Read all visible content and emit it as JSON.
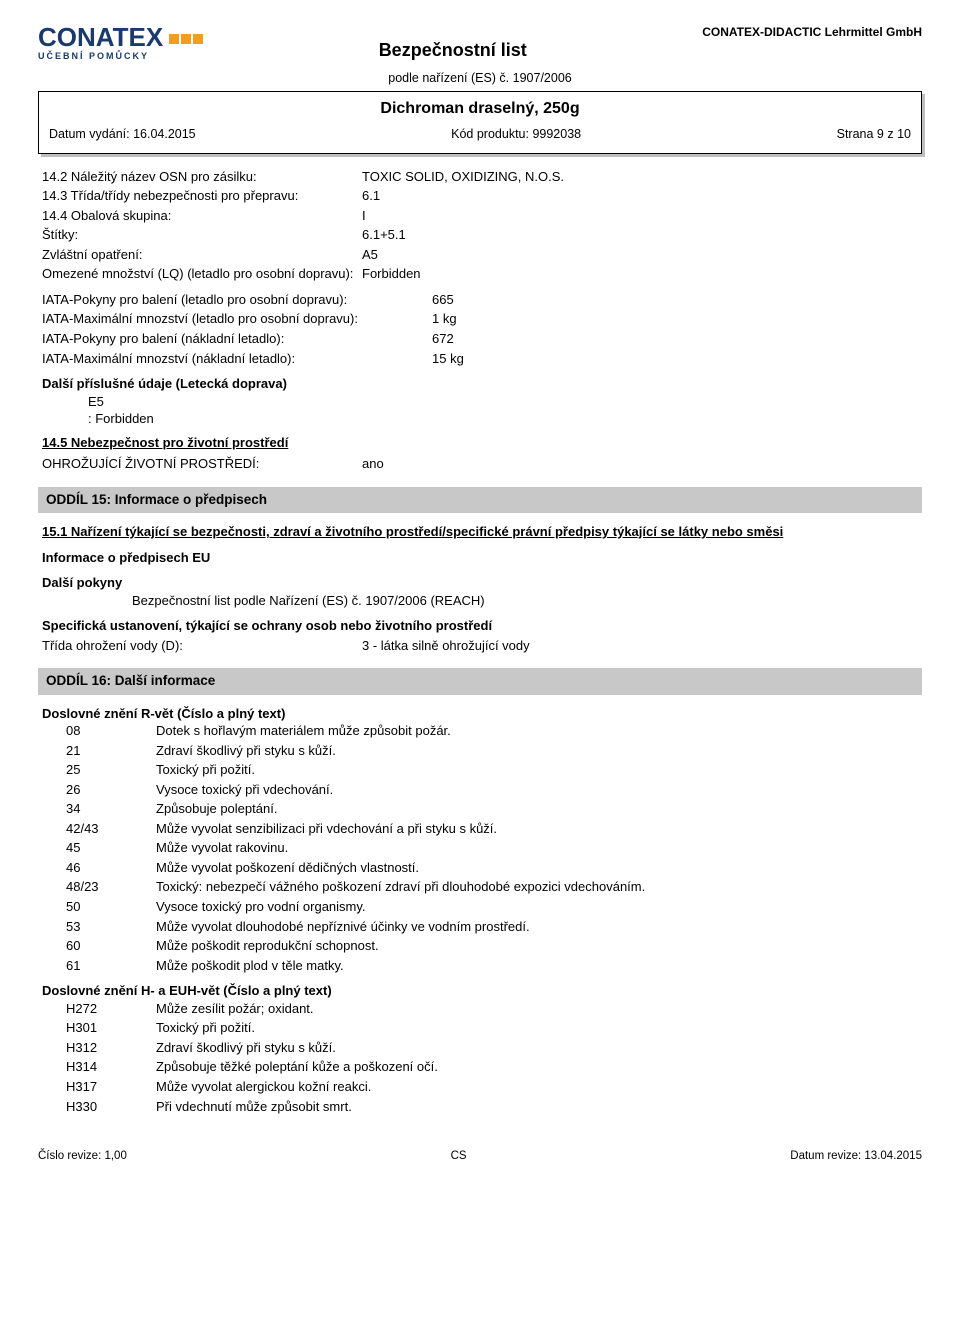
{
  "header": {
    "logo_main": "CONATEX",
    "logo_sub": "UČEBNÍ POMŮCKY",
    "doc_title": "Bezpečnostní list",
    "company": "CONATEX-DIDACTIC Lehrmittel GmbH",
    "regulation": "podle nařízení (ES) č. 1907/2006"
  },
  "product_box": {
    "name": "Dichroman draselný, 250g",
    "date_issued_label": "Datum vydání: 16.04.2015",
    "code_label": "Kód produktu: 9992038",
    "page_label": "Strana 9 z 10"
  },
  "s14": {
    "r1_label": "14.2 Náležitý název OSN pro zásilku:",
    "r1_value": "TOXIC SOLID, OXIDIZING, N.O.S.",
    "r2_label": "14.3 Třída/třídy nebezpečnosti pro přepravu:",
    "r2_value": "6.1",
    "r3_label": "14.4 Obalová skupina:",
    "r3_value": "I",
    "r4_label": "Štítky:",
    "r4_value": "6.1+5.1",
    "r5_label": "Zvláštní opatření:",
    "r5_value": "A5",
    "r6_label": "Omezené množství (LQ) (letadlo pro osobní dopravu):",
    "r6_value": "Forbidden",
    "iata1_label": "IATA-Pokyny pro balení (letadlo pro osobní dopravu):",
    "iata1_value": "665",
    "iata2_label": "IATA-Maximální mnozství (letadlo pro osobní dopravu):",
    "iata2_value": "1 kg",
    "iata3_label": "IATA-Pokyny pro balení (nákladní letadlo):",
    "iata3_value": "672",
    "iata4_label": "IATA-Maximální mnozství (nákladní letadlo):",
    "iata4_value": "15 kg",
    "further_label": "Další příslušné údaje (Letecká doprava)",
    "further_1": "E5",
    "further_2": ": Forbidden",
    "s14_5_title": "14.5 Nebezpečnost pro životní prostředí",
    "env_label": "OHROŽUJÍCÍ ŽIVOTNÍ PROSTŘEDÍ:",
    "env_value": "ano"
  },
  "s15": {
    "bar": "ODDÍL 15: Informace o předpisech",
    "sub1": "15.1 Nařízení týkající se bezpečnosti, zdraví a životního prostředí/specifické právní předpisy týkající se látky nebo směsi",
    "sub2": "Informace o předpisech EU",
    "sub3": "Další pokyny",
    "reach": "Bezpečnostní list podle Nařízení (ES) č. 1907/2006 (REACH)",
    "spec_title": "Specifická ustanovení, týkající se ochrany osob nebo životního prostředí",
    "water_label": "Třída ohrožení vody (D):",
    "water_value": "3 - látka silně ohrožující vody"
  },
  "s16": {
    "bar": "ODDÍL 16: Další informace",
    "r_title": "Doslovné znění R-vět (Číslo a plný text)",
    "r_phrases": [
      {
        "code": "08",
        "text": "Dotek s hořlavým materiálem může způsobit požár."
      },
      {
        "code": "21",
        "text": "Zdraví škodlivý při styku s kůží."
      },
      {
        "code": "25",
        "text": "Toxický při požití."
      },
      {
        "code": "26",
        "text": "Vysoce toxický při vdechování."
      },
      {
        "code": "34",
        "text": "Způsobuje poleptání."
      },
      {
        "code": "42/43",
        "text": "Může vyvolat senzibilizaci při vdechování a při styku s kůží."
      },
      {
        "code": "45",
        "text": "Může vyvolat rakovinu."
      },
      {
        "code": "46",
        "text": "Může vyvolat poškození dědičných vlastností."
      },
      {
        "code": "48/23",
        "text": "Toxický: nebezpečí vážného poškození zdraví při dlouhodobé expozici vdechováním."
      },
      {
        "code": "50",
        "text": "Vysoce toxický pro vodní organismy."
      },
      {
        "code": "53",
        "text": "Může vyvolat dlouhodobé nepříznivé účinky ve vodním prostředí."
      },
      {
        "code": "60",
        "text": "Může poškodit reprodukční schopnost."
      },
      {
        "code": "61",
        "text": "Může poškodit plod v těle matky."
      }
    ],
    "h_title": "Doslovné znění H- a EUH-vět (Číslo a plný text)",
    "h_phrases": [
      {
        "code": "H272",
        "text": "Může zesílit požár; oxidant."
      },
      {
        "code": "H301",
        "text": "Toxický při požití."
      },
      {
        "code": "H312",
        "text": "Zdraví škodlivý při styku s kůží."
      },
      {
        "code": "H314",
        "text": "Způsobuje těžké poleptání kůže a poškození očí."
      },
      {
        "code": "H317",
        "text": "Může vyvolat alergickou kožní reakci."
      },
      {
        "code": "H330",
        "text": "Při vdechnutí může způsobit smrt."
      }
    ]
  },
  "footer": {
    "rev": "Číslo revize: 1,00",
    "lang": "CS",
    "date": "Datum revize: 13.04.2015"
  },
  "colors": {
    "logo_blue": "#1a3a6e",
    "logo_orange": "#f39c1f",
    "section_bar_bg": "#c8c8c8",
    "text": "#000000",
    "background": "#ffffff"
  }
}
